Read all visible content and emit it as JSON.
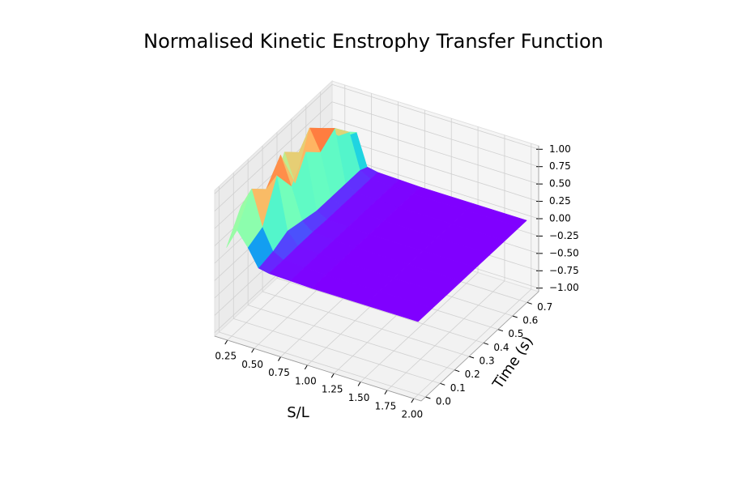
{
  "chart_data": {
    "type": "surface",
    "title": "Normalised Kinetic Enstrophy Transfer Function",
    "x_label": "S/L",
    "y_label": "Time (s)",
    "colormap": "rainbow",
    "x": [
      0.2,
      0.3,
      0.4,
      0.5,
      0.6,
      0.8,
      1.0,
      1.5,
      2.0
    ],
    "y": [
      0,
      0.1,
      0.2,
      0.3,
      0.4,
      0.5,
      0.6,
      0.7,
      0.75
    ],
    "z": [
      [
        0.2,
        0.5,
        0.3,
        0.05,
        0.02,
        0.01,
        0,
        0,
        0
      ],
      [
        0.6,
        0.9,
        0.4,
        0.1,
        0.02,
        0.01,
        0,
        0,
        0
      ],
      [
        0.5,
        0.7,
        0.95,
        0.2,
        0.03,
        0.01,
        0,
        0,
        0
      ],
      [
        0.3,
        1.0,
        0.6,
        0.15,
        0.03,
        0.01,
        0,
        0,
        0
      ],
      [
        0.8,
        0.4,
        0.9,
        0.1,
        0.02,
        0.01,
        0,
        0,
        0
      ],
      [
        0.6,
        1.0,
        0.7,
        0.1,
        0.02,
        0.01,
        0,
        0,
        0
      ],
      [
        0.4,
        0.8,
        0.85,
        0.1,
        0.02,
        0.01,
        0,
        0,
        0
      ],
      [
        0.3,
        0.5,
        0.6,
        0.1,
        0.02,
        0.01,
        0,
        0,
        0
      ],
      [
        0.2,
        0.4,
        0.5,
        0.05,
        0.02,
        0.01,
        0,
        0,
        0
      ]
    ],
    "xlim": [
      0.13,
      2.07
    ],
    "ylim": [
      -0.03,
      0.78
    ],
    "zlim": [
      -1.05,
      1.05
    ],
    "xticks": [
      0.25,
      {
        "value": 0.5,
        "label": "0.50"
      },
      0.75,
      {
        "value": 1,
        "label": "1.00"
      },
      1.25,
      {
        "value": 1.5,
        "label": "1.50"
      },
      1.75,
      {
        "value": 2,
        "label": "2.00"
      }
    ],
    "yticks": [
      {
        "value": 0,
        "label": "0.0"
      },
      0.1,
      0.2,
      0.3,
      0.4,
      0.5,
      0.6,
      0.7
    ],
    "zticks": [
      {
        "value": -1,
        "label": "−1.00"
      },
      {
        "value": -0.75,
        "label": "−0.75"
      },
      {
        "value": -0.5,
        "label": "−0.50"
      },
      {
        "value": -0.25,
        "label": "−0.25"
      },
      {
        "value": 0,
        "label": "0.00"
      },
      0.25,
      {
        "value": 0.5,
        "label": "0.50"
      },
      0.75,
      {
        "value": 1,
        "label": "1.00"
      }
    ],
    "grid": true
  }
}
